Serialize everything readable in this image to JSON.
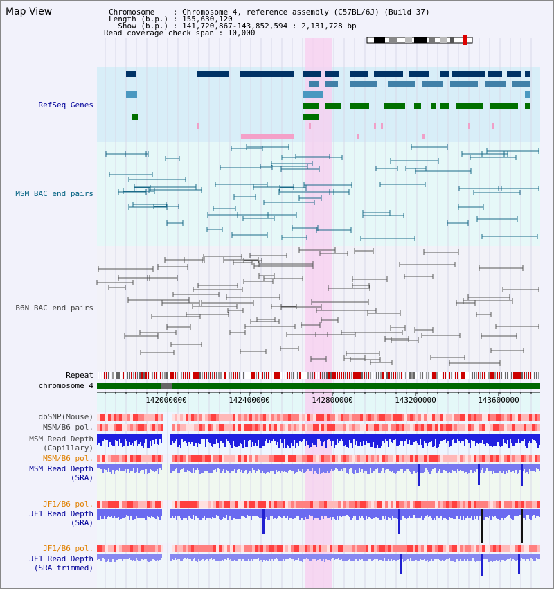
{
  "title": "Map View",
  "info": {
    "line1": "Chromosome    : Chromosome 4, reference assembly (C57BL/6J) (Build 37)",
    "line2": "Length (b.p.) : 155,630,120",
    "line3": "  Show (b.p.) : 141,720,867-143,852,594 : 2,131,728 bp",
    "line4": "Read coverage check span : 10,000"
  },
  "tracks": {
    "refseq": "RefSeq Genes",
    "msm_bac": "MSM BAC end pairs",
    "b6n_bac": "B6N BAC end pairs",
    "repeat": "Repeat",
    "chromosome": "chromosome 4",
    "dbsnp": "dbSNP(Mouse)",
    "msm_b6_pol": "MSM/B6 pol.",
    "msm_depth_cap_1": "MSM Read Depth",
    "msm_depth_cap_2": "(Capillary)",
    "msm_b6_pol2": "MSM/B6 pol.",
    "msm_depth_sra_1": "MSM Read Depth",
    "msm_depth_sra_2": "(SRA)",
    "jf1_b6_pol": "JF1/B6 pol.",
    "jf1_depth_sra_1": "JF1 Read Depth",
    "jf1_depth_sra_2": "(SRA)",
    "jf1_b6_pol2": "JF1/B6 pol.",
    "jf1_depth_trim_1": "JF1 Read Depth",
    "jf1_depth_trim_2": "(SRA trimmed)"
  },
  "axis": {
    "ticks": [
      "142000000",
      "142400000",
      "142800000",
      "143200000",
      "143600000"
    ]
  },
  "colors": {
    "refseq_label": "#000099",
    "msm_label": "#006080",
    "b6n_label": "#444444",
    "orange_label": "#e08000",
    "blue_label": "#000099",
    "highlight": "#f8d0f0"
  }
}
